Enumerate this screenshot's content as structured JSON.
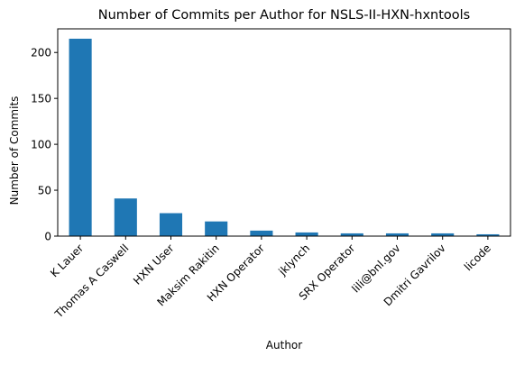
{
  "chart_data": {
    "type": "bar",
    "title": "Number of Commits per Author for NSLS-II-HXN-hxntools",
    "xlabel": "Author",
    "ylabel": "Number of Commits",
    "categories": [
      "K Lauer",
      "Thomas A Caswell",
      "HXN User",
      "Maksim Rakitin",
      "HXN Operator",
      "jklynch",
      "SRX Operator",
      "lili@bnl.gov",
      "Dmitri Gavrilov",
      "licode"
    ],
    "values": [
      215,
      41,
      25,
      16,
      6,
      4,
      3,
      3,
      3,
      2
    ],
    "ylim": [
      0,
      225.75
    ],
    "yticks": [
      "0",
      "50",
      "100",
      "150",
      "200"
    ],
    "grid": false,
    "bar_color": "#1f77b4"
  }
}
